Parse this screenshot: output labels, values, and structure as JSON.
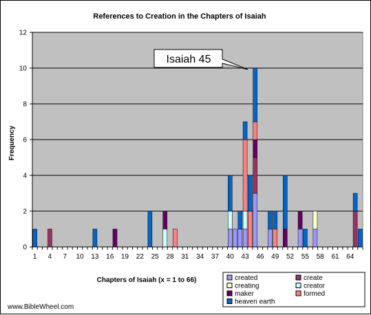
{
  "chart_data": {
    "type": "bar",
    "stacked": true,
    "title": "References to Creation in the Chapters of Isaiah",
    "xlabel": "Chapters of Isaiah (x = 1 to 66)",
    "ylabel": "Frequency",
    "xlim": [
      1,
      66
    ],
    "ylim": [
      0,
      12
    ],
    "yticks": [
      0,
      2,
      4,
      6,
      8,
      10,
      12
    ],
    "xticks": [
      1,
      4,
      7,
      10,
      13,
      16,
      19,
      22,
      25,
      28,
      31,
      34,
      37,
      40,
      43,
      46,
      49,
      52,
      55,
      58,
      61,
      64
    ],
    "grid": true,
    "legend_position": "bottom-right",
    "plot_background": "#c0c0c0",
    "series": [
      {
        "name": "created",
        "color": "#9999ff",
        "points": [
          {
            "x": 40,
            "y": 1
          },
          {
            "x": 41,
            "y": 1
          },
          {
            "x": 42,
            "y": 1
          },
          {
            "x": 43,
            "y": 1
          },
          {
            "x": 45,
            "y": 3
          },
          {
            "x": 48,
            "y": 1
          },
          {
            "x": 54,
            "y": 1
          },
          {
            "x": 57,
            "y": 1
          }
        ]
      },
      {
        "name": "create",
        "color": "#993366",
        "points": [
          {
            "x": 4,
            "y": 1
          },
          {
            "x": 45,
            "y": 2
          },
          {
            "x": 65,
            "y": 2
          }
        ]
      },
      {
        "name": "creating",
        "color": "#ffffcc",
        "points": [
          {
            "x": 57,
            "y": 1
          }
        ]
      },
      {
        "name": "creator",
        "color": "#ccffff",
        "points": [
          {
            "x": 27,
            "y": 1
          },
          {
            "x": 40,
            "y": 1
          },
          {
            "x": 43,
            "y": 1
          }
        ]
      },
      {
        "name": "maker",
        "color": "#660066",
        "points": [
          {
            "x": 17,
            "y": 1
          },
          {
            "x": 27,
            "y": 1
          },
          {
            "x": 45,
            "y": 1
          },
          {
            "x": 51,
            "y": 1
          },
          {
            "x": 54,
            "y": 1
          }
        ]
      },
      {
        "name": "formed",
        "color": "#ff8080",
        "points": [
          {
            "x": 29,
            "y": 1
          },
          {
            "x": 43,
            "y": 4
          },
          {
            "x": 44,
            "y": 2
          },
          {
            "x": 45,
            "y": 1
          },
          {
            "x": 49,
            "y": 1
          }
        ]
      },
      {
        "name": "heaven earth",
        "color": "#0066cc",
        "points": [
          {
            "x": 1,
            "y": 1
          },
          {
            "x": 13,
            "y": 1
          },
          {
            "x": 24,
            "y": 2
          },
          {
            "x": 40,
            "y": 2
          },
          {
            "x": 42,
            "y": 1
          },
          {
            "x": 43,
            "y": 1
          },
          {
            "x": 44,
            "y": 2
          },
          {
            "x": 45,
            "y": 3
          },
          {
            "x": 48,
            "y": 1
          },
          {
            "x": 49,
            "y": 1
          },
          {
            "x": 51,
            "y": 3
          },
          {
            "x": 55,
            "y": 1
          },
          {
            "x": 65,
            "y": 1
          },
          {
            "x": 66,
            "y": 1
          }
        ]
      }
    ],
    "annotations": [
      {
        "text": "Isaiah 45",
        "x": 45,
        "y": 10
      }
    ]
  },
  "footer": {
    "website": "www.BibleWheel.com"
  }
}
